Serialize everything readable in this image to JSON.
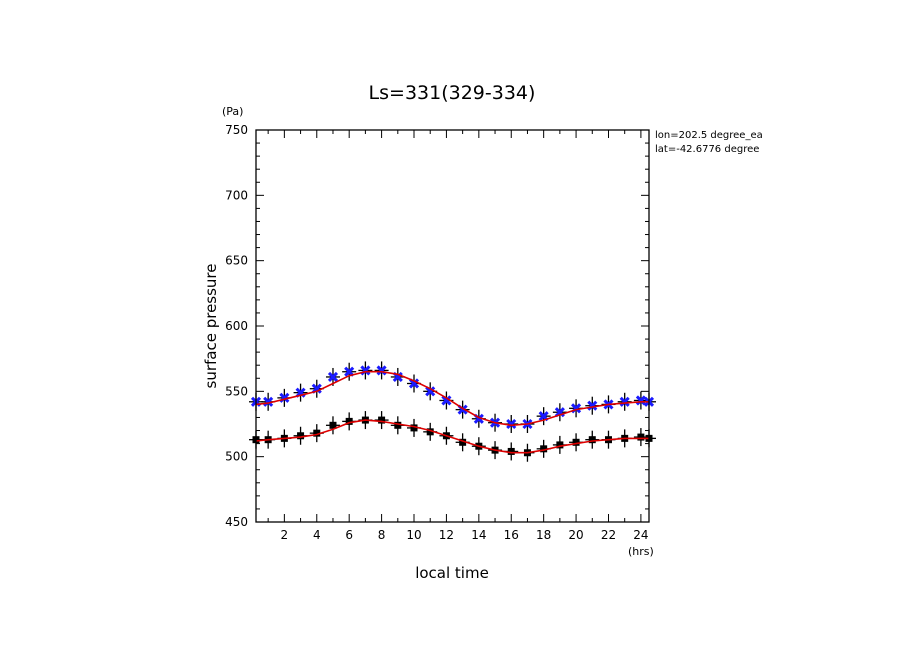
{
  "chart_data": {
    "type": "line",
    "title": "Ls=331(329-334)",
    "xlabel": "local time",
    "ylabel": "surface pressure",
    "x_unit": "(hrs)",
    "y_unit": "(Pa)",
    "annotations": [
      "lon=202.5 degree_ea",
      "lat=-42.6776 degree"
    ],
    "xlim": [
      0.25,
      24.5
    ],
    "ylim": [
      450,
      750
    ],
    "x_ticks": [
      2,
      4,
      6,
      8,
      10,
      12,
      14,
      16,
      18,
      20,
      22,
      24
    ],
    "y_ticks": [
      450,
      500,
      550,
      600,
      650,
      700,
      750
    ],
    "grid": false,
    "legend": "none",
    "colors": {
      "fit": "#dd0000",
      "blue_points": "#1a1aff",
      "black_points": "#000000"
    },
    "series": [
      {
        "marker": "x",
        "color": "#1a1aff",
        "x": [
          0.25,
          1,
          2,
          3,
          4,
          5,
          6,
          7,
          8,
          9,
          10,
          11,
          12,
          13,
          14,
          15,
          16,
          17,
          18,
          19,
          20,
          21,
          22,
          23,
          24,
          24.5
        ],
        "y": [
          542,
          542,
          545,
          549,
          552,
          561,
          565,
          566,
          566,
          561,
          556,
          550,
          543,
          536,
          529,
          526,
          525,
          525,
          531,
          534,
          537,
          539,
          540,
          542,
          543,
          542
        ]
      },
      {
        "marker": "square",
        "color": "#000000",
        "x": [
          0.25,
          1,
          2,
          3,
          4,
          5,
          6,
          7,
          8,
          9,
          10,
          11,
          12,
          13,
          14,
          15,
          16,
          17,
          18,
          19,
          20,
          21,
          22,
          23,
          24,
          24.5
        ],
        "y": [
          513,
          513,
          514,
          516,
          518,
          524,
          527,
          528,
          528,
          524,
          522,
          519,
          516,
          511,
          508,
          505,
          504,
          503,
          506,
          509,
          511,
          513,
          513,
          514,
          515,
          514
        ]
      },
      {
        "marker": "none",
        "color": "#dd0000",
        "x": [
          0.25,
          1,
          2,
          3,
          4,
          5,
          6,
          7,
          8,
          9,
          10,
          11,
          12,
          13,
          14,
          15,
          16,
          17,
          18,
          19,
          20,
          21,
          22,
          23,
          24,
          24.5
        ],
        "y": [
          540,
          541,
          544,
          547,
          550,
          556,
          562,
          565,
          565,
          563,
          558,
          552,
          545,
          537,
          530,
          526,
          524,
          525,
          528,
          532,
          536,
          538,
          540,
          541,
          542,
          542
        ]
      },
      {
        "marker": "none",
        "color": "#dd0000",
        "x": [
          0.25,
          1,
          2,
          3,
          4,
          5,
          6,
          7,
          8,
          9,
          10,
          11,
          12,
          13,
          14,
          15,
          16,
          17,
          18,
          19,
          20,
          21,
          22,
          23,
          24,
          24.5
        ],
        "y": [
          512,
          513,
          514,
          515,
          517,
          521,
          526,
          528,
          527,
          525,
          523,
          520,
          516,
          512,
          508,
          505,
          503,
          503,
          505,
          508,
          510,
          512,
          513,
          514,
          514,
          514
        ]
      }
    ]
  }
}
